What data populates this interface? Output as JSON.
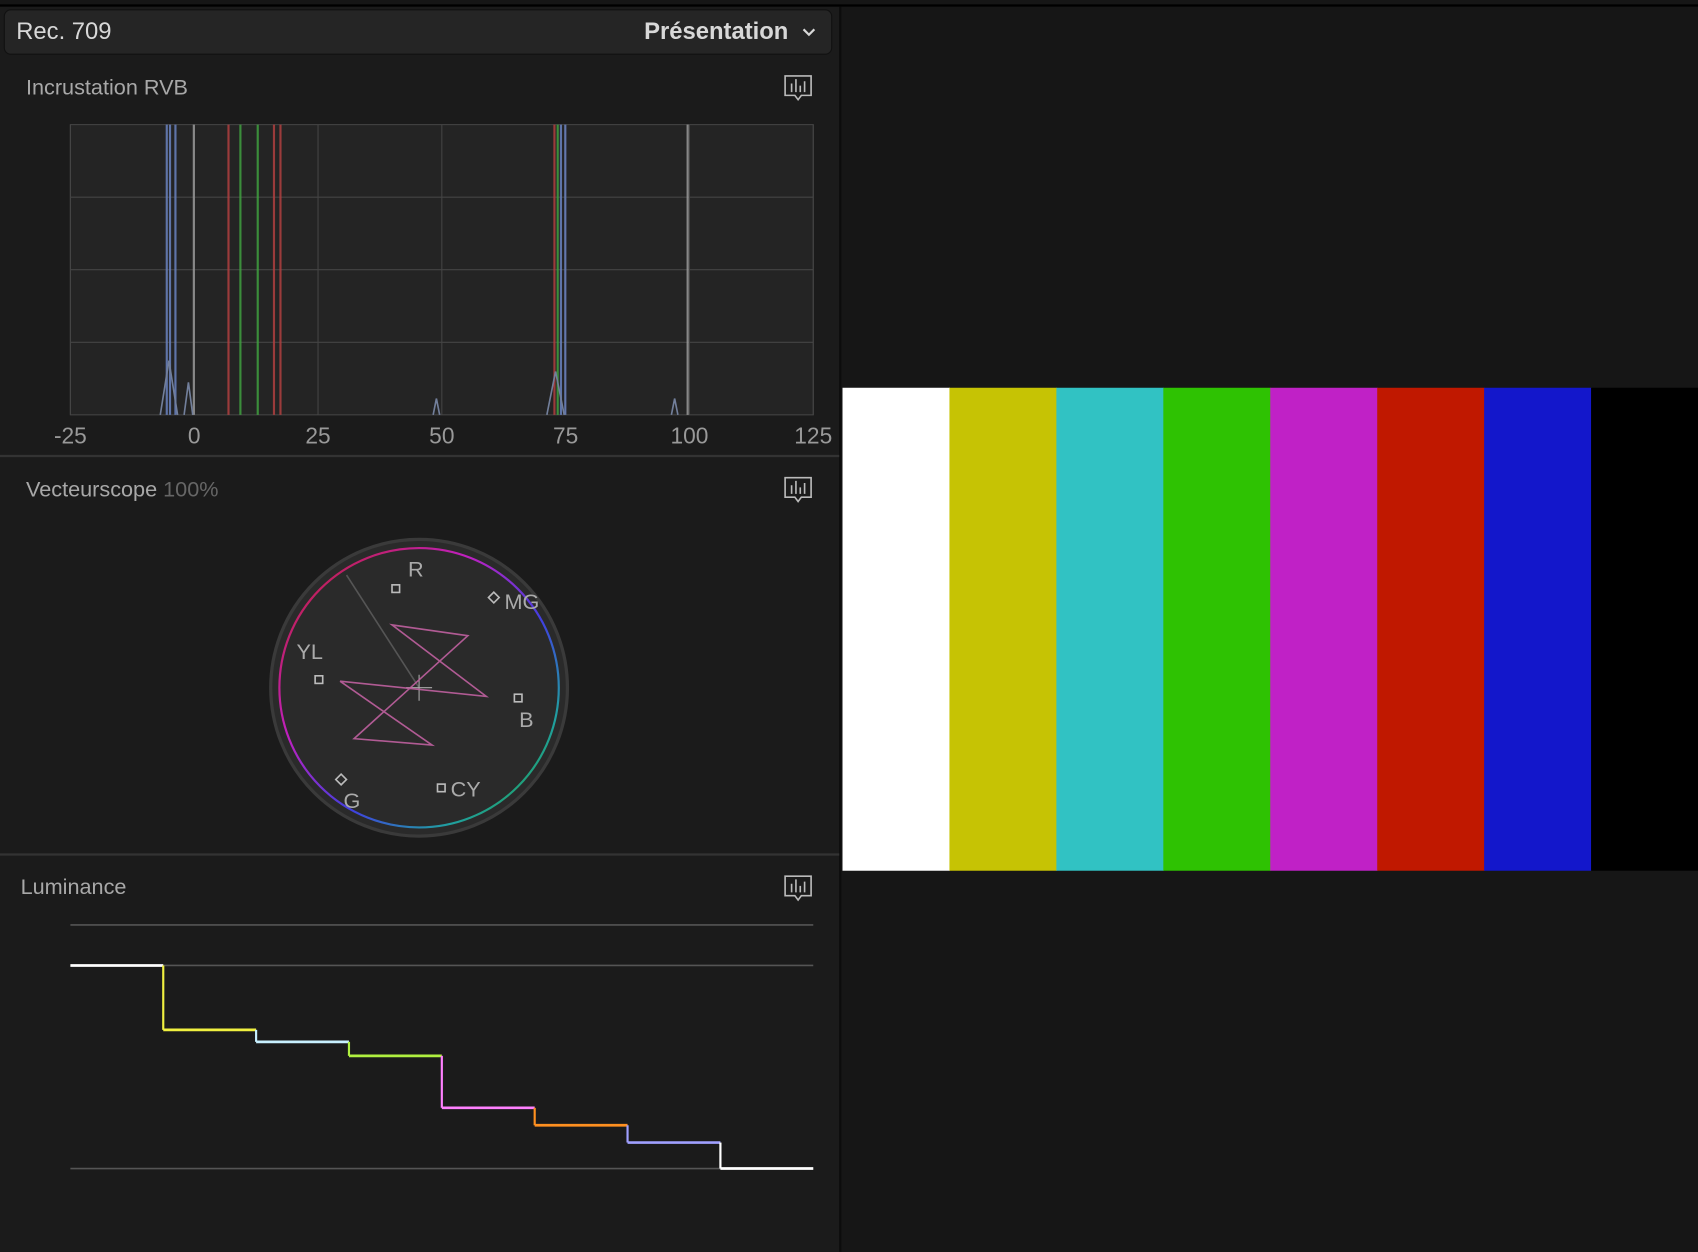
{
  "header": {
    "title": "Rec. 709",
    "menu": "Présentation"
  },
  "histogram": {
    "title": "Incrustation RVB",
    "xlim": [
      -25,
      125
    ],
    "xticks": [
      -25,
      0,
      25,
      50,
      75,
      100,
      125
    ]
  },
  "vectorscope": {
    "title": "Vecteurscope",
    "zoom": "100%",
    "labels": [
      "R",
      "MG",
      "YL",
      "B",
      "G",
      "CY"
    ]
  },
  "luminance": {
    "title": "Luminance",
    "ylim": [
      0,
      120
    ],
    "yticks": [
      0,
      100,
      120
    ],
    "values": [
      100,
      68.3,
      62.4,
      55.5,
      29.9,
      21.3,
      12.8,
      0
    ],
    "colors": [
      "#ffffff",
      "#f0f040",
      "#c8f0ff",
      "#b0f040",
      "#ff80ff",
      "#ff9020",
      "#a0a0ff",
      "#ffffff"
    ]
  },
  "color_bars": [
    "#ffffff",
    "#c6c304",
    "#31c2c3",
    "#2ec202",
    "#c021c6",
    "#c01800",
    "#1317cb",
    "#000000"
  ]
}
